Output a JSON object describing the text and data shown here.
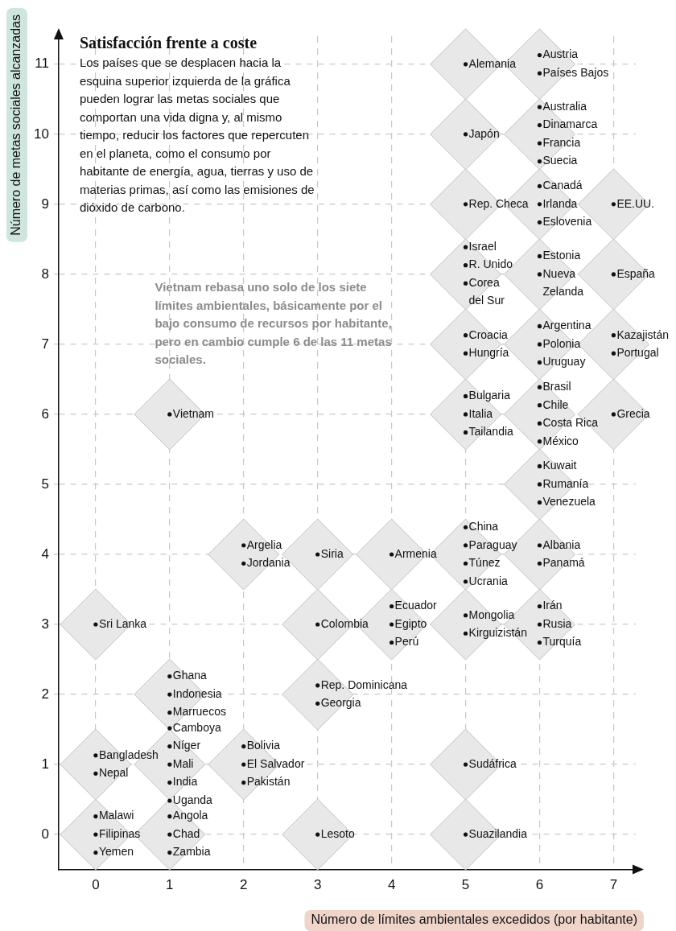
{
  "chart_data": {
    "type": "scatter",
    "title": "Satisfacción frente a coste",
    "subtitle": "Los países que se desplacen hacia la esquina superior izquierda de la gráfica pueden lograr las metas sociales que comportan una vida digna y, al mismo tiempo, reducir los factores que repercuten en el planeta, como el consumo por habitante de energía, agua, tierras y uso de materias primas, así como las emisiones de dióxido de carbono.",
    "xlabel": "Número de límites ambientales excedidos (por habitante)",
    "ylabel": "Número de metas sociales alcanzadas",
    "xlim": [
      -0.5,
      7.3
    ],
    "ylim": [
      -0.5,
      11.4
    ],
    "xticks": [
      0,
      1,
      2,
      3,
      4,
      5,
      6,
      7
    ],
    "yticks": [
      0,
      1,
      2,
      3,
      4,
      5,
      6,
      7,
      8,
      9,
      10,
      11
    ],
    "grid": true,
    "legend": false,
    "marker": "diamond",
    "series": [
      {
        "color": "#e8e8e8",
        "x": [
          0,
          1,
          3,
          5,
          0,
          1,
          2,
          5,
          1,
          3,
          0,
          3,
          4,
          5,
          6,
          2,
          3,
          4,
          5,
          6,
          6,
          1,
          5,
          6,
          7,
          5,
          6,
          7,
          5,
          6,
          7,
          5,
          6,
          7,
          5,
          6,
          5,
          6
        ],
        "values": [
          0,
          0,
          0,
          0,
          1,
          1,
          1,
          1,
          2,
          2,
          3,
          3,
          3,
          3,
          3,
          4,
          4,
          4,
          4,
          4,
          5,
          6,
          6,
          6,
          6,
          7,
          7,
          7,
          8,
          8,
          8,
          9,
          9,
          9,
          10,
          10,
          11,
          11
        ]
      }
    ],
    "annotations": [
      "Vietnam rebasa uno solo de los siete límites ambientales, básicamente por el bajo consumo de recursos por habitante, pero en cambio cumple 6 de las 11 metas sociales.",
      {
        "text": "Malawi",
        "x": 0,
        "y": 0
      },
      {
        "text": "Filipinas",
        "x": 0,
        "y": 0
      },
      {
        "text": "Yemen",
        "x": 0,
        "y": 0
      },
      {
        "text": "Angola",
        "x": 1,
        "y": 0
      },
      {
        "text": "Chad",
        "x": 1,
        "y": 0
      },
      {
        "text": "Zambia",
        "x": 1,
        "y": 0
      },
      {
        "text": "Lesoto",
        "x": 3,
        "y": 0
      },
      {
        "text": "Suazilandia",
        "x": 5,
        "y": 0
      },
      {
        "text": "Bangladesh",
        "x": 0,
        "y": 1
      },
      {
        "text": "Nepal",
        "x": 0,
        "y": 1
      },
      {
        "text": "Camboya",
        "x": 1,
        "y": 1
      },
      {
        "text": "Níger",
        "x": 1,
        "y": 1
      },
      {
        "text": "Mali",
        "x": 1,
        "y": 1
      },
      {
        "text": "India",
        "x": 1,
        "y": 1
      },
      {
        "text": "Uganda",
        "x": 1,
        "y": 1
      },
      {
        "text": "Bolivia",
        "x": 2,
        "y": 1
      },
      {
        "text": "El Salvador",
        "x": 2,
        "y": 1
      },
      {
        "text": "Pakistán",
        "x": 2,
        "y": 1
      },
      {
        "text": "Sudáfrica",
        "x": 5,
        "y": 1
      },
      {
        "text": "Ghana",
        "x": 1,
        "y": 2
      },
      {
        "text": "Indonesia",
        "x": 1,
        "y": 2
      },
      {
        "text": "Marruecos",
        "x": 1,
        "y": 2
      },
      {
        "text": "Rep. Dominicana",
        "x": 3,
        "y": 2
      },
      {
        "text": "Georgia",
        "x": 3,
        "y": 2
      },
      {
        "text": "Sri Lanka",
        "x": 0,
        "y": 3
      },
      {
        "text": "Colombia",
        "x": 3,
        "y": 3
      },
      {
        "text": "Ecuador",
        "x": 4,
        "y": 3
      },
      {
        "text": "Egipto",
        "x": 4,
        "y": 3
      },
      {
        "text": "Perú",
        "x": 4,
        "y": 3
      },
      {
        "text": "Mongolia",
        "x": 5,
        "y": 3
      },
      {
        "text": "Kirguizistán",
        "x": 5,
        "y": 3
      },
      {
        "text": "Irán",
        "x": 6,
        "y": 3
      },
      {
        "text": "Rusia",
        "x": 6,
        "y": 3
      },
      {
        "text": "Turquía",
        "x": 6,
        "y": 3
      },
      {
        "text": "Argelia",
        "x": 2,
        "y": 4
      },
      {
        "text": "Jordania",
        "x": 2,
        "y": 4
      },
      {
        "text": "Siria",
        "x": 3,
        "y": 4
      },
      {
        "text": "Armenia",
        "x": 4,
        "y": 4
      },
      {
        "text": "China",
        "x": 5,
        "y": 4
      },
      {
        "text": "Paraguay",
        "x": 5,
        "y": 4
      },
      {
        "text": "Túnez",
        "x": 5,
        "y": 4
      },
      {
        "text": "Ucrania",
        "x": 5,
        "y": 4
      },
      {
        "text": "Albania",
        "x": 6,
        "y": 4
      },
      {
        "text": "Panamá",
        "x": 6,
        "y": 4
      },
      {
        "text": "Kuwait",
        "x": 6,
        "y": 5
      },
      {
        "text": "Rumanía",
        "x": 6,
        "y": 5
      },
      {
        "text": "Venezuela",
        "x": 6,
        "y": 5
      },
      {
        "text": "Vietnam",
        "x": 1,
        "y": 6
      },
      {
        "text": "Bulgaria",
        "x": 5,
        "y": 6
      },
      {
        "text": "Italia",
        "x": 5,
        "y": 6
      },
      {
        "text": "Tailandia",
        "x": 5,
        "y": 6
      },
      {
        "text": "Brasil",
        "x": 6,
        "y": 6
      },
      {
        "text": "Chile",
        "x": 6,
        "y": 6
      },
      {
        "text": "Costa Rica",
        "x": 6,
        "y": 6
      },
      {
        "text": "México",
        "x": 6,
        "y": 6
      },
      {
        "text": "Grecia",
        "x": 7,
        "y": 6
      },
      {
        "text": "Croacia",
        "x": 5,
        "y": 7
      },
      {
        "text": "Hungría",
        "x": 5,
        "y": 7
      },
      {
        "text": "Argentina",
        "x": 6,
        "y": 7
      },
      {
        "text": "Polonia",
        "x": 6,
        "y": 7
      },
      {
        "text": "Uruguay",
        "x": 6,
        "y": 7
      },
      {
        "text": "Kazajistán",
        "x": 7,
        "y": 7
      },
      {
        "text": "Portugal",
        "x": 7,
        "y": 7
      },
      {
        "text": "Israel",
        "x": 5,
        "y": 8
      },
      {
        "text": "R. Unido",
        "x": 5,
        "y": 8
      },
      {
        "text": "Corea del Sur",
        "x": 5,
        "y": 8
      },
      {
        "text": "Estonia",
        "x": 6,
        "y": 8
      },
      {
        "text": "Nueva Zelanda",
        "x": 6,
        "y": 8
      },
      {
        "text": "España",
        "x": 7,
        "y": 8
      },
      {
        "text": "Rep. Checa",
        "x": 5,
        "y": 9
      },
      {
        "text": "Canadá",
        "x": 6,
        "y": 9
      },
      {
        "text": "Irlanda",
        "x": 6,
        "y": 9
      },
      {
        "text": "Eslovenia",
        "x": 6,
        "y": 9
      },
      {
        "text": "EE.UU.",
        "x": 7,
        "y": 9
      },
      {
        "text": "Japón",
        "x": 5,
        "y": 10
      },
      {
        "text": "Australia",
        "x": 6,
        "y": 10
      },
      {
        "text": "Dinamarca",
        "x": 6,
        "y": 10
      },
      {
        "text": "Francia",
        "x": 6,
        "y": 10
      },
      {
        "text": "Suecia",
        "x": 6,
        "y": 10
      },
      {
        "text": "Alemania",
        "x": 5,
        "y": 11
      },
      {
        "text": "Austria",
        "x": 6,
        "y": 11
      },
      {
        "text": "Países Bajos",
        "x": 6,
        "y": 11
      }
    ]
  }
}
